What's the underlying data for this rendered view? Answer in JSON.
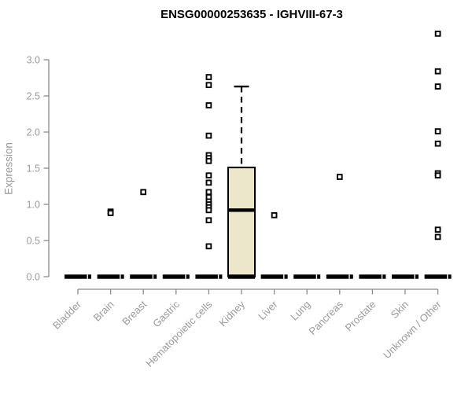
{
  "window": {
    "title": "ENSG00000253635 - IGHVIII-67-3"
  },
  "colors": {
    "background": "#ffffff",
    "title": "#000000",
    "axis_line": "#8a8a8a",
    "tick_label": "#9a9a9a",
    "box_fill": "#ece7cb",
    "box_stroke": "#000000",
    "median": "#000000",
    "outlier_fill": "#ffffff",
    "outlier_stroke": "#000000"
  },
  "chart_data": {
    "type": "boxplot",
    "title": "ENSG00000253635 - IGHVIII-67-3",
    "xlabel": "",
    "ylabel": "Expression",
    "ylim": [
      0.0,
      3.45
    ],
    "yticks": [
      0.0,
      0.5,
      1.0,
      1.5,
      2.0,
      2.5,
      3.0
    ],
    "ytick_labels": [
      "0.0",
      "0.5",
      "1.0",
      "1.5",
      "2.0",
      "2.5",
      "3.0"
    ],
    "grid": false,
    "legend": "none",
    "categories": [
      "Bladder",
      "Brain",
      "Breast",
      "Gastric",
      "Hematopoietic cells",
      "Kidney",
      "Liver",
      "Lung",
      "Pancreas",
      "Prostate",
      "Skin",
      "Unknown / Other"
    ],
    "boxes": [
      {
        "category": "Bladder",
        "q1": 0.0,
        "median": 0.0,
        "q3": 0.0,
        "whisker_low": 0.0,
        "whisker_high": 0.0,
        "outliers": []
      },
      {
        "category": "Brain",
        "q1": 0.0,
        "median": 0.0,
        "q3": 0.0,
        "whisker_low": 0.0,
        "whisker_high": 0.0,
        "outliers": [
          0.9,
          0.88
        ]
      },
      {
        "category": "Breast",
        "q1": 0.0,
        "median": 0.0,
        "q3": 0.0,
        "whisker_low": 0.0,
        "whisker_high": 0.0,
        "outliers": [
          1.17
        ]
      },
      {
        "category": "Gastric",
        "q1": 0.0,
        "median": 0.0,
        "q3": 0.0,
        "whisker_low": 0.0,
        "whisker_high": 0.0,
        "outliers": []
      },
      {
        "category": "Hematopoietic cells",
        "q1": 0.0,
        "median": 0.0,
        "q3": 0.0,
        "whisker_low": 0.0,
        "whisker_high": 0.0,
        "outliers": [
          2.76,
          2.65,
          2.37,
          1.95,
          1.68,
          1.64,
          1.6,
          1.4,
          1.3,
          1.17,
          1.1,
          1.04,
          1.0,
          0.96,
          0.92,
          0.78,
          0.42
        ]
      },
      {
        "category": "Kidney",
        "q1": 0.0,
        "median": 0.92,
        "q3": 1.51,
        "whisker_low": 0.0,
        "whisker_high": 2.63,
        "outliers": []
      },
      {
        "category": "Liver",
        "q1": 0.0,
        "median": 0.0,
        "q3": 0.0,
        "whisker_low": 0.0,
        "whisker_high": 0.0,
        "outliers": [
          0.85
        ]
      },
      {
        "category": "Lung",
        "q1": 0.0,
        "median": 0.0,
        "q3": 0.0,
        "whisker_low": 0.0,
        "whisker_high": 0.0,
        "outliers": []
      },
      {
        "category": "Pancreas",
        "q1": 0.0,
        "median": 0.0,
        "q3": 0.0,
        "whisker_low": 0.0,
        "whisker_high": 0.0,
        "outliers": [
          1.38
        ]
      },
      {
        "category": "Prostate",
        "q1": 0.0,
        "median": 0.0,
        "q3": 0.0,
        "whisker_low": 0.0,
        "whisker_high": 0.0,
        "outliers": []
      },
      {
        "category": "Skin",
        "q1": 0.0,
        "median": 0.0,
        "q3": 0.0,
        "whisker_low": 0.0,
        "whisker_high": 0.0,
        "outliers": []
      },
      {
        "category": "Unknown / Other",
        "q1": 0.0,
        "median": 0.0,
        "q3": 0.0,
        "whisker_low": 0.0,
        "whisker_high": 0.0,
        "outliers": [
          3.36,
          2.84,
          2.63,
          2.01,
          1.84,
          1.43,
          1.4,
          0.65,
          0.55
        ]
      }
    ]
  }
}
